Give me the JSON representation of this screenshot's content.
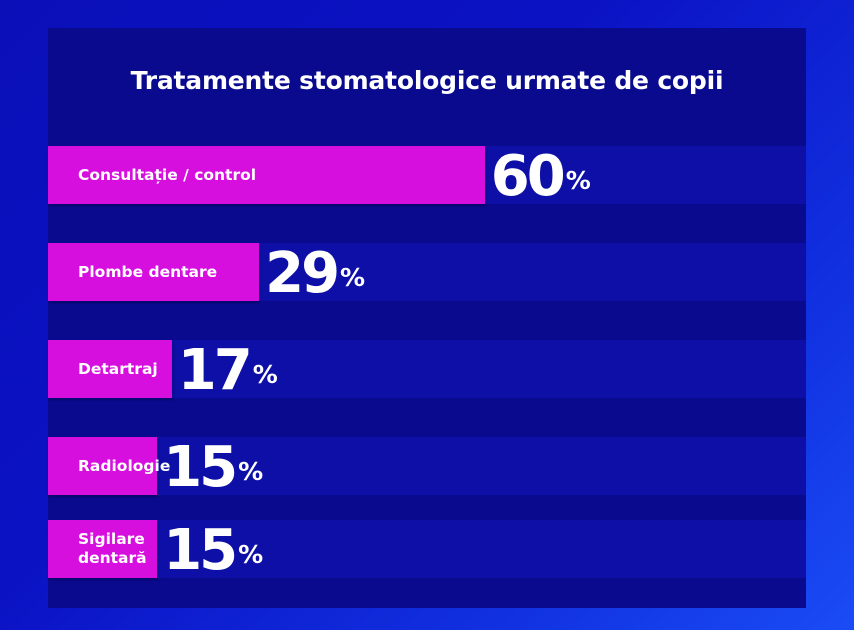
{
  "chart_data": {
    "type": "bar",
    "orientation": "horizontal",
    "title": "Tratamente stomatologice urmate de copii",
    "categories": [
      "Consultație / control",
      "Plombe dentare",
      "Detartraj",
      "Radiologie",
      "Sigilare dentară"
    ],
    "values": [
      60,
      29,
      17,
      15,
      15
    ],
    "value_labels": [
      "60",
      "29",
      "17",
      "15",
      "15"
    ],
    "unit": "%",
    "xlim": [
      0,
      100
    ],
    "grid": false,
    "legend": "none"
  },
  "colors": {
    "background": "#0b12c4",
    "panel": "#0a0a8e",
    "track": "#0d0fa6",
    "bar": "#d60fde",
    "text": "#ffffff"
  }
}
